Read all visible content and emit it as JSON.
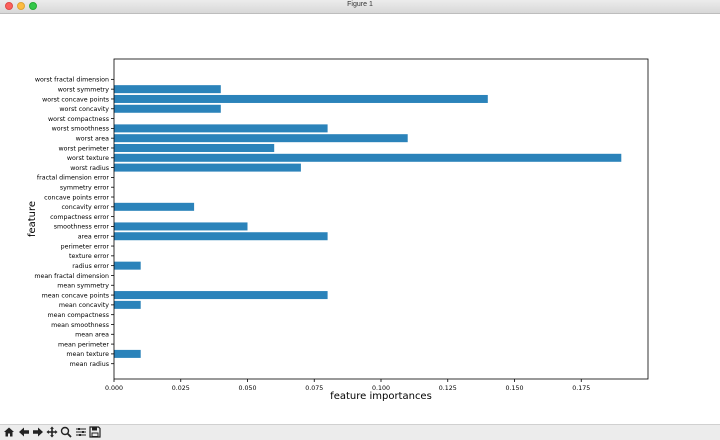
{
  "window": {
    "title": "Figure 1"
  },
  "toolbar": {
    "buttons": [
      "home-icon",
      "back-arrow-icon",
      "forward-arrow-icon",
      "pan-icon",
      "zoom-icon",
      "subplots-icon",
      "save-icon"
    ]
  },
  "colors": {
    "bar": "#2b83ba",
    "axis": "#000000",
    "background": "#ffffff"
  },
  "chart_data": {
    "type": "bar",
    "orientation": "horizontal",
    "title": "",
    "xlabel": "feature importances",
    "ylabel": "feature",
    "xlim": [
      0,
      0.2
    ],
    "xticks": [
      0.0,
      0.025,
      0.05,
      0.075,
      0.1,
      0.125,
      0.15,
      0.175
    ],
    "xtick_labels": [
      "0.000",
      "0.025",
      "0.050",
      "0.075",
      "0.100",
      "0.125",
      "0.150",
      "0.175"
    ],
    "grid": false,
    "categories": [
      "mean radius",
      "mean texture",
      "mean perimeter",
      "mean area",
      "mean smoothness",
      "mean compactness",
      "mean concavity",
      "mean concave points",
      "mean symmetry",
      "mean fractal dimension",
      "radius error",
      "texture error",
      "perimeter error",
      "area error",
      "smoothness error",
      "compactness error",
      "concavity error",
      "concave points error",
      "symmetry error",
      "fractal dimension error",
      "worst radius",
      "worst texture",
      "worst perimeter",
      "worst area",
      "worst smoothness",
      "worst compactness",
      "worst concavity",
      "worst concave points",
      "worst symmetry",
      "worst fractal dimension"
    ],
    "values": [
      0.0,
      0.01,
      0.0,
      0.0,
      0.0,
      0.0,
      0.01,
      0.08,
      0.0,
      0.0,
      0.01,
      0.0,
      0.0,
      0.08,
      0.05,
      0.0,
      0.03,
      0.0,
      0.0,
      0.0,
      0.07,
      0.19,
      0.06,
      0.11,
      0.08,
      0.0,
      0.04,
      0.14,
      0.04,
      0.0
    ]
  }
}
